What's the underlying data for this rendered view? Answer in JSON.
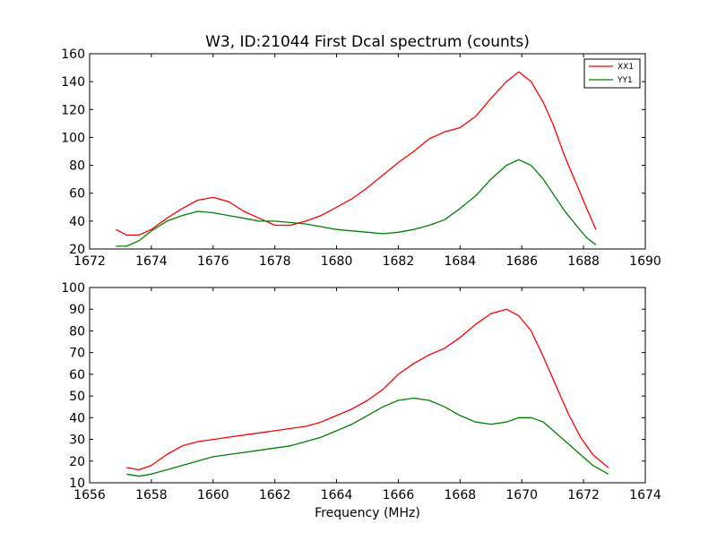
{
  "figure": {
    "title": "W3, ID:21044 First Dcal spectrum (counts)",
    "xlabel": "Frequency (MHz)"
  },
  "colors": {
    "XX1": "#ff0000",
    "YY1": "#008000"
  },
  "legend": {
    "placement": "top-right",
    "entries": [
      "XX1",
      "YY1"
    ]
  },
  "chart_data": [
    {
      "type": "line",
      "panel": "top",
      "title": "W3, ID:21044 First Dcal spectrum (counts)",
      "xlabel": "",
      "ylabel": "",
      "xlim": [
        1672,
        1690
      ],
      "ylim": [
        20,
        160
      ],
      "xticks": [
        "1672",
        "1674",
        "1676",
        "1678",
        "1680",
        "1682",
        "1684",
        "1686",
        "1688",
        "1690"
      ],
      "yticks": [
        "20",
        "40",
        "60",
        "80",
        "100",
        "120",
        "140",
        "160"
      ],
      "grid": false,
      "legend": "top-right",
      "series": [
        {
          "name": "XX1",
          "color": "#ff0000",
          "x": [
            1672.85,
            1673.2,
            1673.6,
            1674.0,
            1674.5,
            1675.0,
            1675.5,
            1676.0,
            1676.5,
            1677.0,
            1677.5,
            1678.0,
            1678.5,
            1679.0,
            1679.5,
            1680.0,
            1680.5,
            1681.0,
            1681.5,
            1682.0,
            1682.5,
            1683.0,
            1683.5,
            1684.0,
            1684.5,
            1685.0,
            1685.5,
            1685.9,
            1686.3,
            1686.7,
            1687.0,
            1687.4,
            1687.8,
            1688.1,
            1688.4
          ],
          "y": [
            34,
            30,
            30,
            34,
            42,
            49,
            55,
            57,
            54,
            47,
            42,
            37,
            37,
            40,
            44,
            50,
            56,
            64,
            73,
            82,
            90,
            99,
            104,
            107,
            115,
            128,
            140,
            147,
            140,
            125,
            110,
            86,
            65,
            49,
            34
          ]
        },
        {
          "name": "YY1",
          "color": "#008000",
          "x": [
            1672.85,
            1673.2,
            1673.6,
            1674.0,
            1674.5,
            1675.0,
            1675.5,
            1676.0,
            1676.5,
            1677.0,
            1677.5,
            1678.0,
            1678.5,
            1679.0,
            1679.5,
            1680.0,
            1680.5,
            1681.0,
            1681.5,
            1682.0,
            1682.5,
            1683.0,
            1683.5,
            1684.0,
            1684.5,
            1685.0,
            1685.5,
            1685.9,
            1686.3,
            1686.7,
            1687.0,
            1687.4,
            1687.8,
            1688.1,
            1688.4
          ],
          "y": [
            22,
            22,
            26,
            33,
            40,
            44,
            47,
            46,
            44,
            42,
            40,
            40,
            39,
            38,
            36,
            34,
            33,
            32,
            31,
            32,
            34,
            37,
            41,
            49,
            58,
            70,
            80,
            84,
            80,
            70,
            60,
            47,
            36,
            28,
            23
          ]
        }
      ]
    },
    {
      "type": "line",
      "panel": "bottom",
      "xlabel": "Frequency (MHz)",
      "ylabel": "",
      "xlim": [
        1656,
        1674
      ],
      "ylim": [
        10,
        100
      ],
      "xticks": [
        "1656",
        "1658",
        "1660",
        "1662",
        "1664",
        "1666",
        "1668",
        "1670",
        "1672",
        "1674"
      ],
      "yticks": [
        "10",
        "20",
        "30",
        "40",
        "50",
        "60",
        "70",
        "80",
        "90",
        "100"
      ],
      "grid": false,
      "series": [
        {
          "name": "XX1",
          "color": "#ff0000",
          "x": [
            1657.2,
            1657.6,
            1658.0,
            1658.5,
            1659.0,
            1659.5,
            1660.0,
            1660.5,
            1661.0,
            1661.5,
            1662.0,
            1662.5,
            1663.0,
            1663.5,
            1664.0,
            1664.5,
            1665.0,
            1665.5,
            1666.0,
            1666.5,
            1667.0,
            1667.5,
            1668.0,
            1668.5,
            1669.0,
            1669.5,
            1669.9,
            1670.3,
            1670.7,
            1671.1,
            1671.5,
            1671.9,
            1672.3,
            1672.8
          ],
          "y": [
            17,
            16,
            18,
            23,
            27,
            29,
            30,
            31,
            32,
            33,
            34,
            35,
            36,
            38,
            41,
            44,
            48,
            53,
            60,
            65,
            69,
            72,
            77,
            83,
            88,
            90,
            87,
            80,
            68,
            55,
            42,
            31,
            23,
            17
          ]
        },
        {
          "name": "YY1",
          "color": "#008000",
          "x": [
            1657.2,
            1657.6,
            1658.0,
            1658.5,
            1659.0,
            1659.5,
            1660.0,
            1660.5,
            1661.0,
            1661.5,
            1662.0,
            1662.5,
            1663.0,
            1663.5,
            1664.0,
            1664.5,
            1665.0,
            1665.5,
            1666.0,
            1666.5,
            1667.0,
            1667.5,
            1668.0,
            1668.5,
            1669.0,
            1669.5,
            1669.9,
            1670.3,
            1670.7,
            1671.1,
            1671.5,
            1671.9,
            1672.3,
            1672.8
          ],
          "y": [
            14,
            13,
            14,
            16,
            18,
            20,
            22,
            23,
            24,
            25,
            26,
            27,
            29,
            31,
            34,
            37,
            41,
            45,
            48,
            49,
            48,
            45,
            41,
            38,
            37,
            38,
            40,
            40,
            38,
            33,
            28,
            23,
            18,
            14
          ]
        }
      ]
    }
  ]
}
